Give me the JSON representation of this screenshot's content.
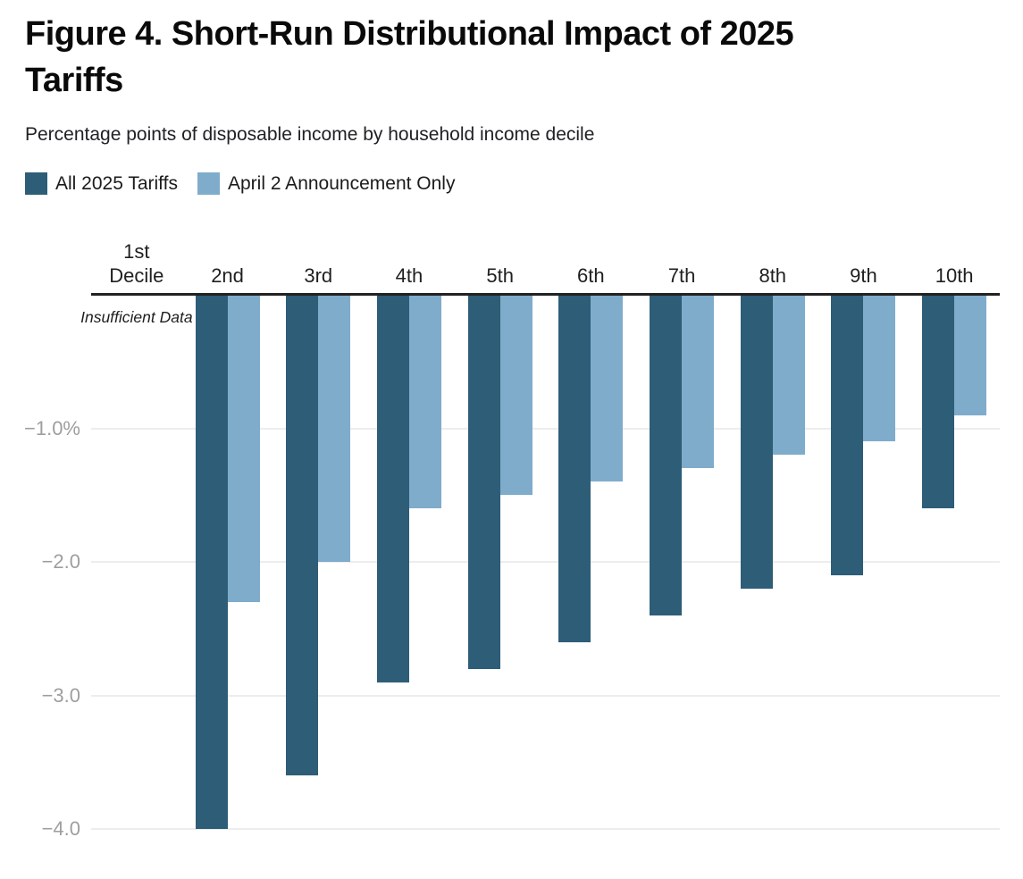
{
  "page": {
    "title": "Figure 4. Short-Run Distributional Impact of 2025 Tariffs",
    "subtitle": "Percentage points of disposable income by household income decile"
  },
  "legend": [
    {
      "label": "All 2025 Tariffs",
      "color": "#2E5D78"
    },
    {
      "label": "April 2 Announcement Only",
      "color": "#7FACCB"
    }
  ],
  "chart_data": {
    "type": "bar",
    "title": "Figure 4. Short-Run Distributional Impact of 2025 Tariffs",
    "subtitle": "Percentage points of disposable income by household income decile",
    "categories": [
      "1st Decile",
      "2nd",
      "3rd",
      "4th",
      "5th",
      "6th",
      "7th",
      "8th",
      "9th",
      "10th"
    ],
    "series": [
      {
        "name": "All 2025 Tariffs",
        "color": "#2E5D78",
        "values": [
          null,
          -4.0,
          -3.6,
          -2.9,
          -2.8,
          -2.6,
          -2.4,
          -2.2,
          -2.1,
          -1.6
        ]
      },
      {
        "name": "April 2 Announcement Only",
        "color": "#7FACCB",
        "values": [
          null,
          -2.3,
          -2.0,
          -1.6,
          -1.5,
          -1.4,
          -1.3,
          -1.2,
          -1.1,
          -0.9
        ]
      }
    ],
    "y_ticks": [
      {
        "value": -1.0,
        "label": "−1.0%"
      },
      {
        "value": -2.0,
        "label": "−2.0"
      },
      {
        "value": -3.0,
        "label": "−3.0"
      },
      {
        "value": -4.0,
        "label": "−4.0"
      }
    ],
    "ylim": [
      0,
      -4.35
    ],
    "grid": "horizontal",
    "legend_position": "top",
    "xlabel": "",
    "ylabel": "Percentage points of disposable income",
    "annotations": [
      {
        "text": "Insufficient Data",
        "category_index": 0
      }
    ],
    "colors": {
      "axis_line": "#222222",
      "gridline": "#ededed",
      "y_tick_text": "#9e9e9e",
      "x_tick_text": "#1f1f1f"
    }
  }
}
